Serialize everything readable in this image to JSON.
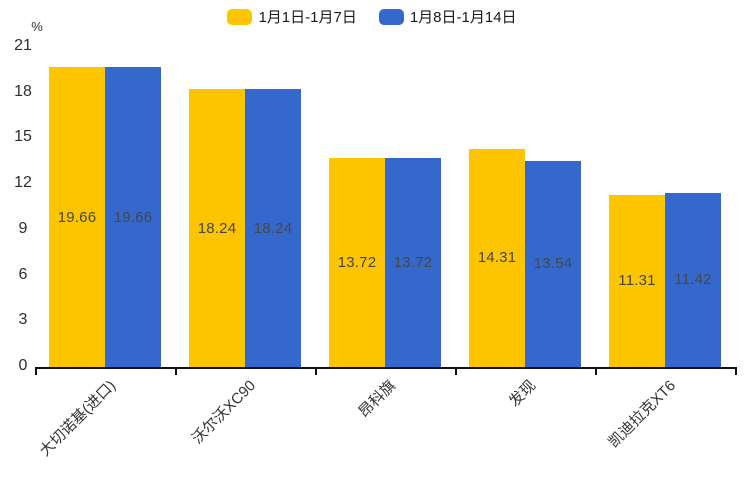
{
  "chart_data": {
    "type": "bar",
    "title": "",
    "xlabel": "",
    "ylabel": "%",
    "categories": [
      "大切诺基(进口)",
      "沃尔沃XC90",
      "昂科旗",
      "发现",
      "凯迪拉克XT6"
    ],
    "series": [
      {
        "name": "1月1日-1月7日",
        "color": "#FDC500",
        "values": [
          19.66,
          18.24,
          13.72,
          14.31,
          11.31
        ]
      },
      {
        "name": "1月8日-1月14日",
        "color": "#3568CD",
        "values": [
          19.66,
          18.24,
          13.72,
          13.54,
          11.42
        ]
      }
    ],
    "y_axis": {
      "unit": "%",
      "ticks": [
        0,
        3,
        6,
        9,
        12,
        15,
        18,
        21
      ],
      "min": 0,
      "max": 21
    },
    "legend_position": "top-center",
    "grid": false,
    "value_labels": "inside-center",
    "value_label_decimals": 2,
    "category_label_rotation_deg": 45
  }
}
